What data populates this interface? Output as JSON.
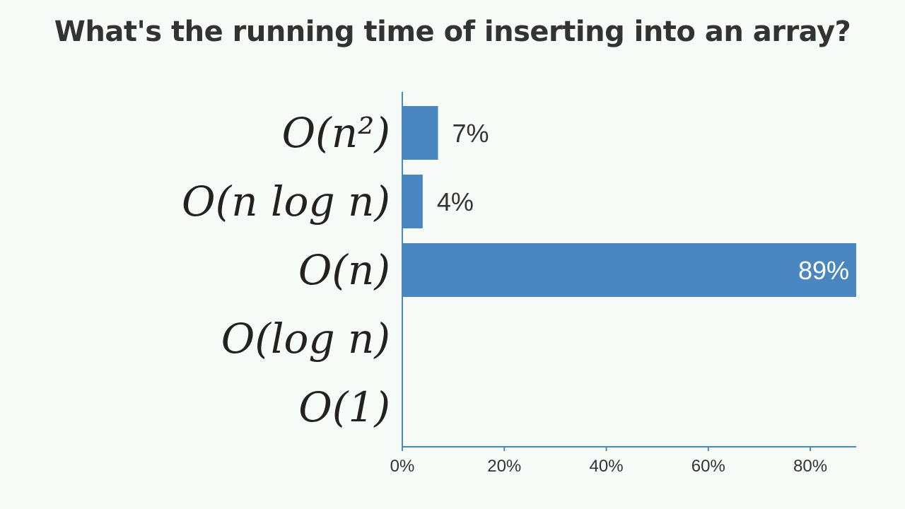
{
  "title": "What's the running time of inserting into an array?",
  "colors": {
    "bar": "#4a86c0",
    "axis": "#4a86c0",
    "text": "#333333",
    "label_inside": "#ffffff"
  },
  "chart_data": {
    "type": "bar",
    "orientation": "horizontal",
    "title": "What's the running time of inserting into an array?",
    "categories": [
      "O(n²)",
      "O(n log n)",
      "O(n)",
      "O(log n)",
      "O(1)"
    ],
    "values": [
      7,
      4,
      89,
      0,
      0
    ],
    "data_labels": [
      "7%",
      "4%",
      "89%",
      "",
      ""
    ],
    "xlim": [
      0,
      89
    ],
    "xticks": [
      0,
      20,
      40,
      60,
      80
    ],
    "xtick_labels": [
      "0%",
      "20%",
      "40%",
      "60%",
      "80%"
    ],
    "xlabel": "",
    "ylabel": "",
    "grid": false,
    "legend": "none"
  }
}
